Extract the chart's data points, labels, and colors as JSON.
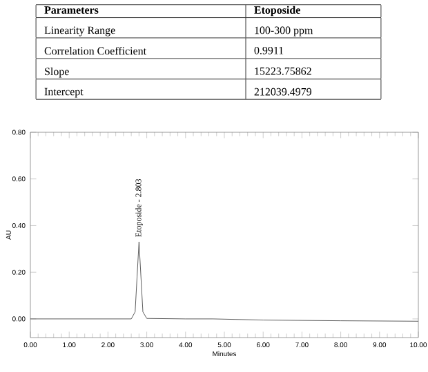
{
  "chart_data": {
    "type": "line",
    "xlabel": "Minutes",
    "ylabel": "AU",
    "xlim": [
      0,
      10
    ],
    "ylim": [
      -0.08,
      0.8
    ],
    "xticks": [
      {
        "value": 0,
        "label": "0.00"
      },
      {
        "value": 1,
        "label": "1.00"
      },
      {
        "value": 2,
        "label": "2.00"
      },
      {
        "value": 3,
        "label": "3.00"
      },
      {
        "value": 4,
        "label": "4.00"
      },
      {
        "value": 5,
        "label": "5.00"
      },
      {
        "value": 6,
        "label": "6.00"
      },
      {
        "value": 7,
        "label": "7.00"
      },
      {
        "value": 8,
        "label": "8.00"
      },
      {
        "value": 9,
        "label": "9.00"
      },
      {
        "value": 10,
        "label": "10.00"
      }
    ],
    "yticks": [
      {
        "value": 0,
        "label": "0.00"
      },
      {
        "value": 0.2,
        "label": "0.20"
      },
      {
        "value": 0.4,
        "label": "0.40"
      },
      {
        "value": 0.6,
        "label": "0.60"
      },
      {
        "value": 0.8,
        "label": "0.80"
      }
    ],
    "x": [
      0,
      1,
      2,
      2.6,
      2.7,
      2.75,
      2.8,
      2.85,
      2.9,
      3.0,
      4.0,
      4.7,
      6.0,
      8.0,
      10
    ],
    "values": [
      0,
      0,
      0,
      0,
      0.03,
      0.18,
      0.33,
      0.18,
      0.03,
      0.002,
      0,
      0,
      -0.005,
      -0.008,
      -0.01
    ],
    "color": "#333333",
    "annotations": [
      {
        "text": "Etoposide - 2.803",
        "x": 2.803,
        "y": 0.33
      },
      "Parameters",
      "Etoposide",
      "Linearity Range",
      "100-300 ppm",
      "Correlation Coefficient",
      "0.9911",
      "Slope",
      "15223.75862",
      "Intercept",
      "212039.4979"
    ]
  }
}
